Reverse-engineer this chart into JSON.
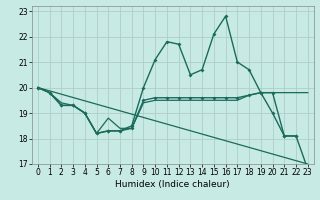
{
  "xlabel": "Humidex (Indice chaleur)",
  "bg_color": "#c8eae5",
  "grid_color": "#b0cec9",
  "line_color": "#1a6b5a",
  "xlim": [
    -0.5,
    23.5
  ],
  "ylim": [
    17.0,
    23.2
  ],
  "yticks": [
    17,
    18,
    19,
    20,
    21,
    22,
    23
  ],
  "xticks": [
    0,
    1,
    2,
    3,
    4,
    5,
    6,
    7,
    8,
    9,
    10,
    11,
    12,
    13,
    14,
    15,
    16,
    17,
    18,
    19,
    20,
    21,
    22,
    23
  ],
  "line1_x": [
    0,
    1,
    2,
    3,
    4,
    5,
    6,
    7,
    8,
    9,
    10,
    11,
    12,
    13,
    14,
    15,
    16,
    17,
    18,
    19,
    20,
    21,
    22,
    23
  ],
  "line1_y": [
    20.0,
    19.8,
    19.3,
    19.3,
    19.0,
    18.2,
    18.3,
    18.3,
    18.5,
    20.0,
    21.1,
    21.8,
    21.7,
    20.5,
    20.7,
    22.1,
    22.8,
    21.0,
    20.7,
    19.8,
    19.0,
    18.1,
    18.1,
    16.8
  ],
  "line2_x": [
    0,
    1,
    2,
    3,
    4,
    5,
    6,
    7,
    8,
    9,
    10,
    11,
    12,
    13,
    14,
    15,
    16,
    17,
    18,
    19,
    20,
    21,
    22
  ],
  "line2_y": [
    20.0,
    19.8,
    19.3,
    19.3,
    19.0,
    18.2,
    18.3,
    18.3,
    18.4,
    19.5,
    19.6,
    19.6,
    19.6,
    19.6,
    19.6,
    19.6,
    19.6,
    19.6,
    19.7,
    19.8,
    19.8,
    18.1,
    18.1
  ],
  "line3_x": [
    0,
    23
  ],
  "line3_y": [
    20.0,
    17.0
  ],
  "line4_x": [
    0,
    1,
    2,
    3,
    4,
    5,
    6,
    7,
    8,
    9,
    10,
    11,
    12,
    13,
    14,
    15,
    16,
    17,
    18,
    19,
    20,
    21,
    22,
    23
  ],
  "line4_y": [
    20.0,
    19.8,
    19.4,
    19.3,
    19.0,
    18.2,
    18.8,
    18.4,
    18.4,
    19.4,
    19.5,
    19.5,
    19.5,
    19.5,
    19.5,
    19.5,
    19.5,
    19.5,
    19.7,
    19.8,
    19.8,
    19.8,
    19.8,
    19.8
  ]
}
